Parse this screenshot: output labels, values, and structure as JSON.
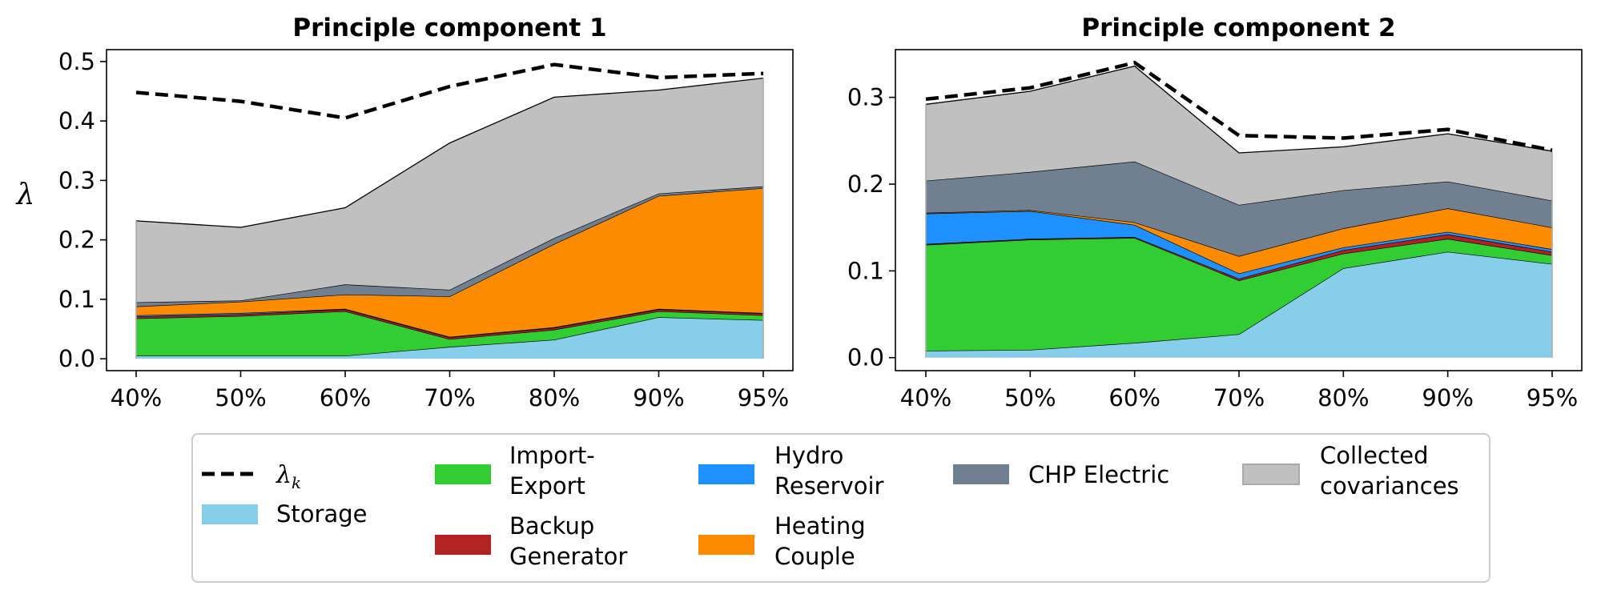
{
  "chart_data": [
    {
      "type": "area",
      "title": "Principle component 1",
      "ylabel": "λ",
      "categories": [
        "40%",
        "50%",
        "60%",
        "70%",
        "80%",
        "90%",
        "95%"
      ],
      "ylim": [
        -0.02,
        0.52
      ],
      "yticks": [
        "0.0",
        "0.1",
        "0.2",
        "0.3",
        "0.4",
        "0.5"
      ],
      "stacked": true,
      "series": [
        {
          "name": "Storage",
          "color": "#87ceeb",
          "values": [
            0.005,
            0.005,
            0.005,
            0.02,
            0.032,
            0.07,
            0.065
          ]
        },
        {
          "name": "Import-Export",
          "color": "#32cd32",
          "values": [
            0.063,
            0.067,
            0.075,
            0.013,
            0.017,
            0.01,
            0.008
          ]
        },
        {
          "name": "Backup Generator",
          "color": "#b22222",
          "values": [
            0.003,
            0.003,
            0.003,
            0.003,
            0.003,
            0.003,
            0.003
          ]
        },
        {
          "name": "Hydro Reservoir",
          "color": "#1e90ff",
          "values": [
            0.002,
            0.002,
            0.001,
            0.001,
            0.001,
            0.001,
            0.001
          ]
        },
        {
          "name": "Heating Couple",
          "color": "#ff8c00",
          "values": [
            0.015,
            0.019,
            0.024,
            0.068,
            0.14,
            0.19,
            0.21
          ]
        },
        {
          "name": "CHP Electric",
          "color": "#708090",
          "values": [
            0.007,
            0.002,
            0.017,
            0.011,
            0.01,
            0.004,
            0.003
          ]
        },
        {
          "name": "Collected covariances",
          "color": "#c0c0c0",
          "values": [
            0.137,
            0.123,
            0.129,
            0.247,
            0.237,
            0.174,
            0.182
          ]
        }
      ],
      "lambda_k": {
        "name": "λk",
        "values": [
          0.448,
          0.433,
          0.405,
          0.458,
          0.495,
          0.473,
          0.48
        ]
      }
    },
    {
      "type": "area",
      "title": "Principle component 2",
      "categories": [
        "40%",
        "50%",
        "60%",
        "70%",
        "80%",
        "90%",
        "95%"
      ],
      "ylim": [
        -0.015,
        0.355
      ],
      "yticks": [
        "0.0",
        "0.1",
        "0.2",
        "0.3"
      ],
      "stacked": true,
      "series": [
        {
          "name": "Storage",
          "color": "#87ceeb",
          "values": [
            0.008,
            0.009,
            0.017,
            0.027,
            0.103,
            0.122,
            0.108
          ]
        },
        {
          "name": "Import-Export",
          "color": "#32cd32",
          "values": [
            0.122,
            0.127,
            0.121,
            0.062,
            0.017,
            0.015,
            0.01
          ]
        },
        {
          "name": "Backup Generator",
          "color": "#b22222",
          "values": [
            0.001,
            0.001,
            0.001,
            0.002,
            0.004,
            0.005,
            0.004
          ]
        },
        {
          "name": "Hydro Reservoir",
          "color": "#1e90ff",
          "values": [
            0.035,
            0.032,
            0.014,
            0.006,
            0.003,
            0.003,
            0.003
          ]
        },
        {
          "name": "Heating Couple",
          "color": "#ff8c00",
          "values": [
            0.001,
            0.001,
            0.003,
            0.02,
            0.022,
            0.027,
            0.025
          ]
        },
        {
          "name": "CHP Electric",
          "color": "#708090",
          "values": [
            0.037,
            0.044,
            0.07,
            0.059,
            0.044,
            0.031,
            0.031
          ]
        },
        {
          "name": "Collected covariances",
          "color": "#c0c0c0",
          "values": [
            0.088,
            0.093,
            0.11,
            0.06,
            0.05,
            0.055,
            0.057
          ]
        }
      ],
      "lambda_k": {
        "name": "λk",
        "values": [
          0.298,
          0.311,
          0.34,
          0.256,
          0.253,
          0.263,
          0.239
        ]
      }
    }
  ],
  "legend": {
    "lambda_symbol": "λ",
    "lambda_subscript": "k",
    "items": [
      {
        "key": "storage",
        "line1": "Storage",
        "line2": "",
        "color": "#87ceeb"
      },
      {
        "key": "import-export",
        "line1": "Import-",
        "line2": "Export",
        "color": "#32cd32"
      },
      {
        "key": "backup-generator",
        "line1": "Backup",
        "line2": "Generator",
        "color": "#b22222"
      },
      {
        "key": "hydro-reservoir",
        "line1": "Hydro",
        "line2": "Reservoir",
        "color": "#1e90ff"
      },
      {
        "key": "heating-couple",
        "line1": "Heating",
        "line2": "Couple",
        "color": "#ff8c00"
      },
      {
        "key": "chp-electric",
        "line1": "CHP Electric",
        "line2": "",
        "color": "#708090"
      },
      {
        "key": "collected-covariances",
        "line1": "Collected",
        "line2": "covariances",
        "color": "#c0c0c0"
      }
    ]
  }
}
